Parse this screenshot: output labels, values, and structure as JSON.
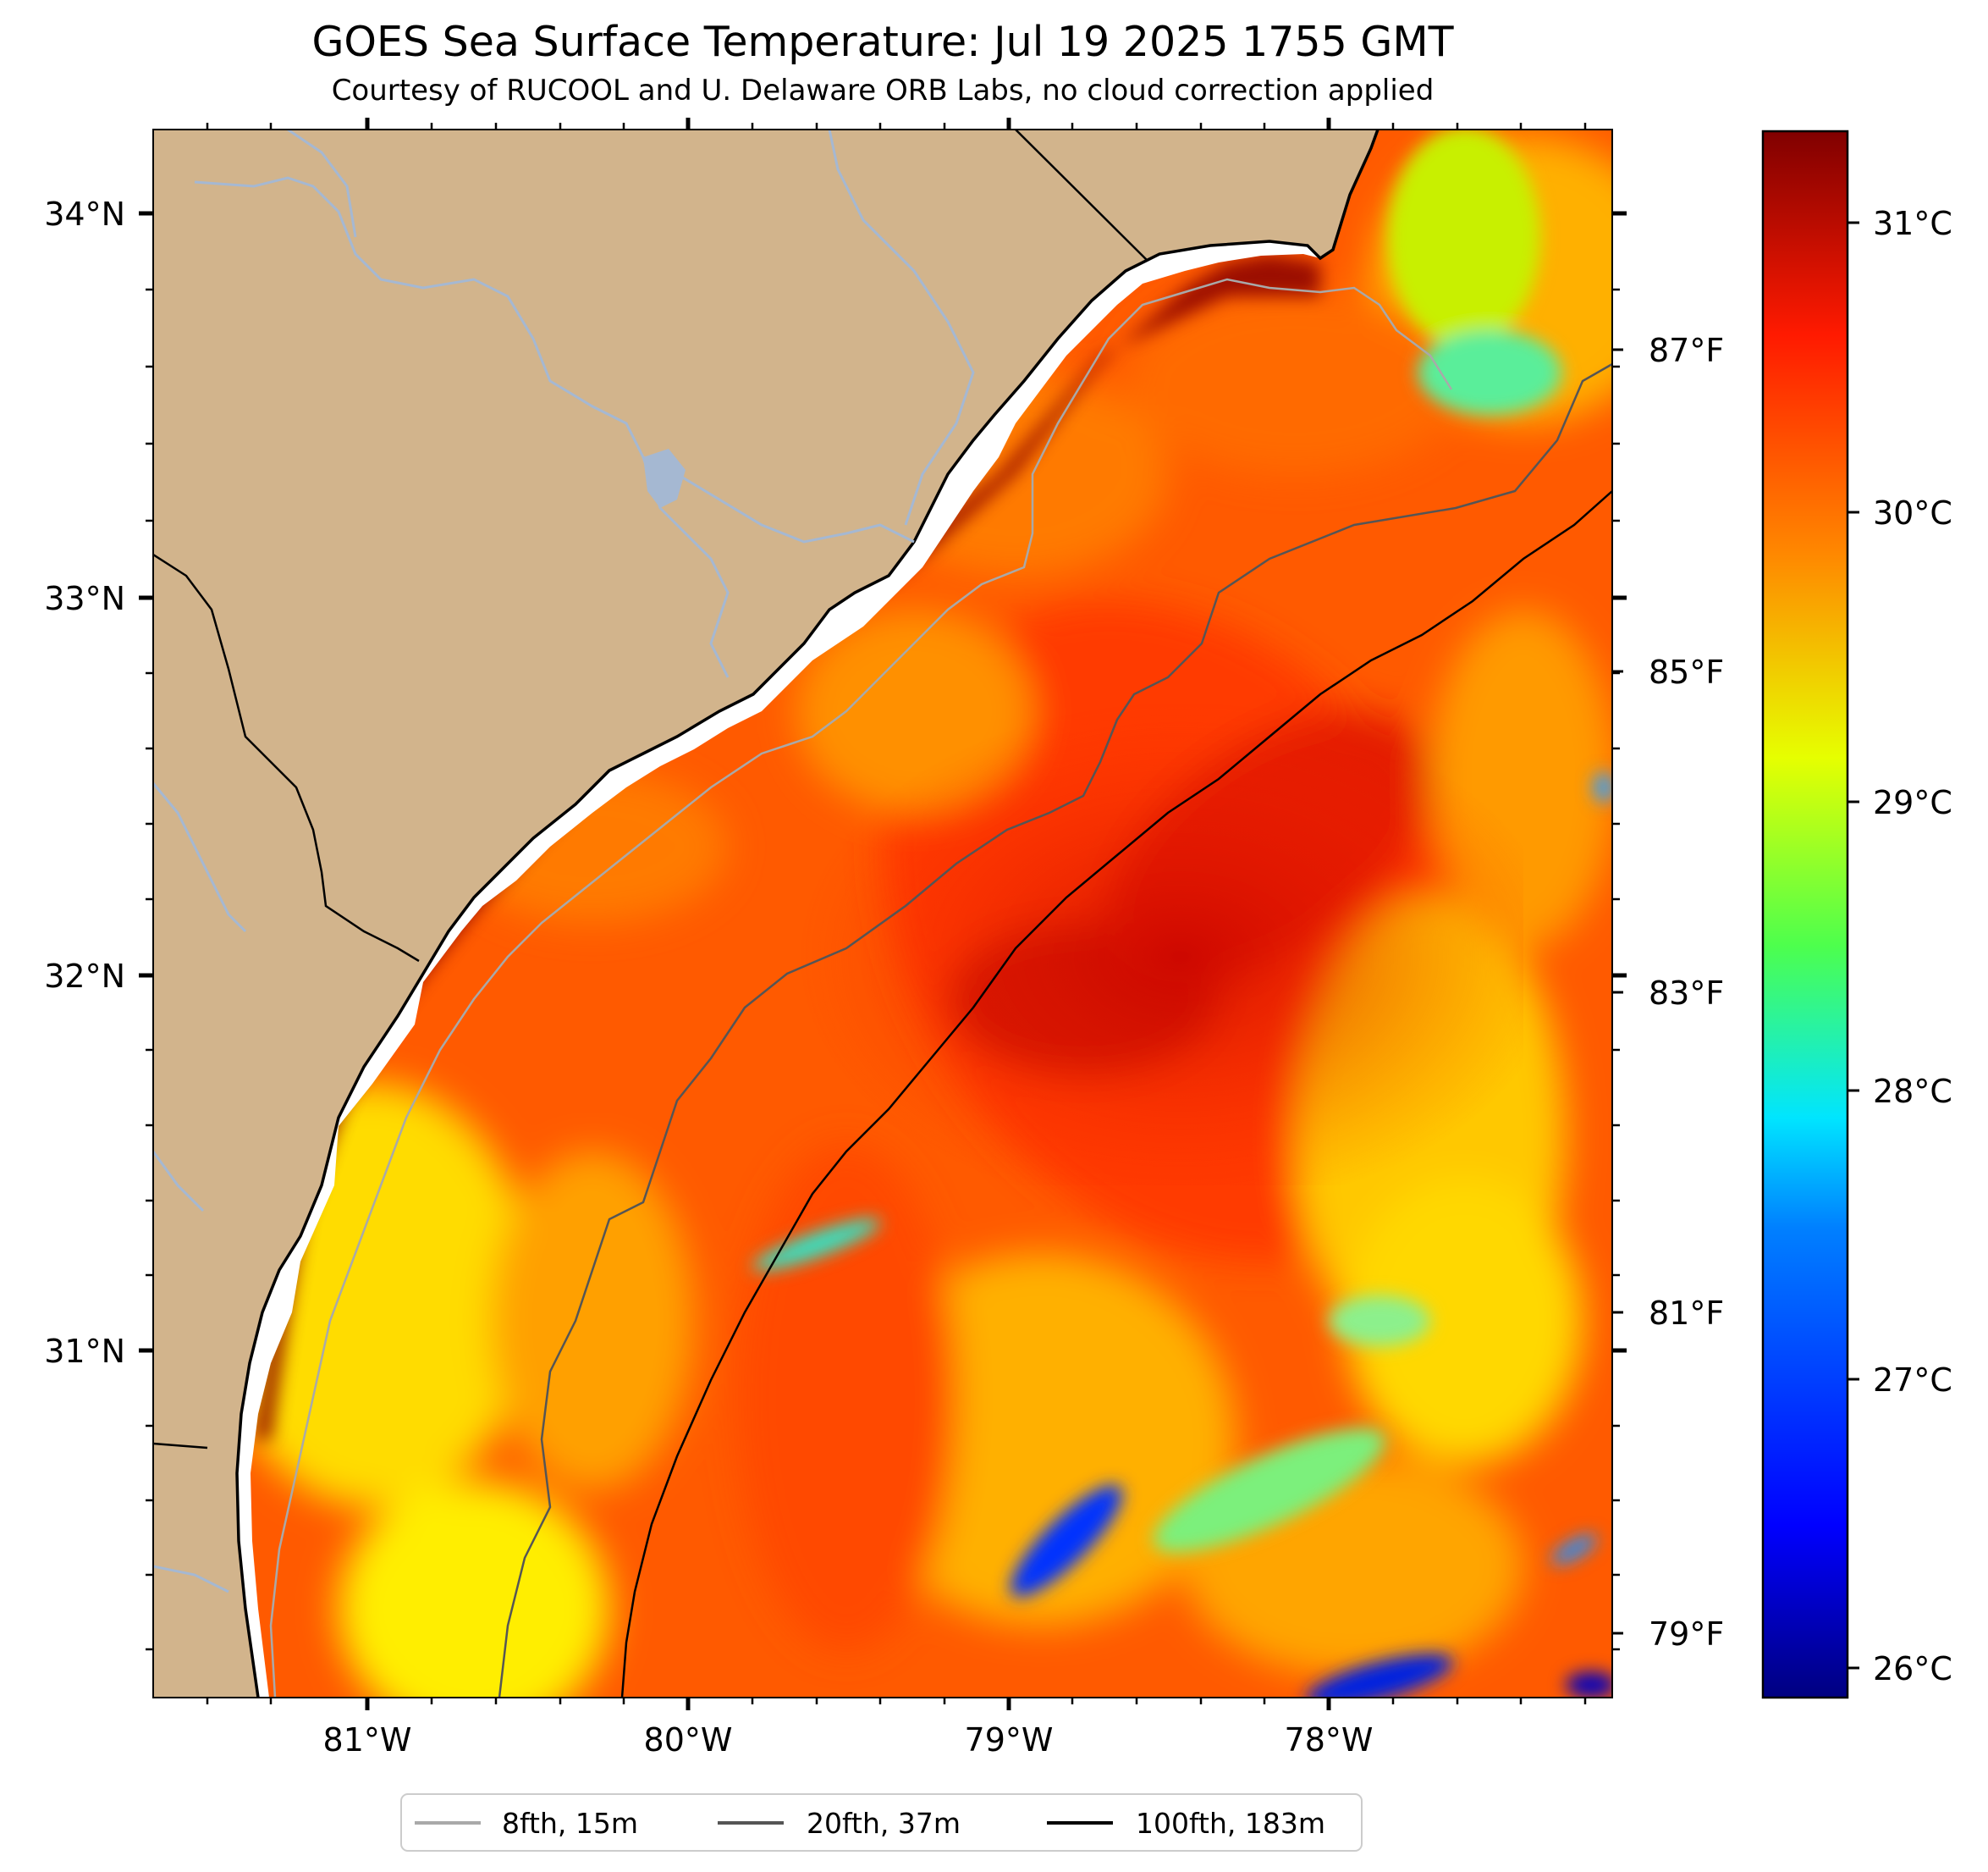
{
  "title": "GOES Sea Surface Temperature: Jul 19 2025 1755 GMT",
  "subtitle": "Courtesy of RUCOOL and U. Delaware ORB Labs, no cloud correction applied",
  "colors": {
    "land": "#d2b48c",
    "river": "#a5b8d2",
    "land_border": "#000000",
    "coast_fill": "#ffffff"
  },
  "map": {
    "lat_labels": [
      "34°N",
      "33°N",
      "32°N",
      "31°N"
    ],
    "lon_labels": [
      "81°W",
      "80°W",
      "79°W",
      "78°W"
    ],
    "f_labels": [
      "87°F",
      "85°F",
      "83°F",
      "81°F",
      "79°F"
    ]
  },
  "colorbar": {
    "c_labels": [
      "31°C",
      "30°C",
      "29°C",
      "28°C",
      "27°C",
      "26°C"
    ],
    "colormap": [
      "#000080",
      "#0000ff",
      "#0080ff",
      "#00e5ff",
      "#4dff4d",
      "#e6ff00",
      "#ff8800",
      "#ff1a00",
      "#800000"
    ]
  },
  "legend": {
    "items": [
      {
        "label": "8fth, 15m",
        "color": "#a9a9a9"
      },
      {
        "label": "20fth, 37m",
        "color": "#555555"
      },
      {
        "label": "100fth, 183m",
        "color": "#000000"
      }
    ]
  }
}
